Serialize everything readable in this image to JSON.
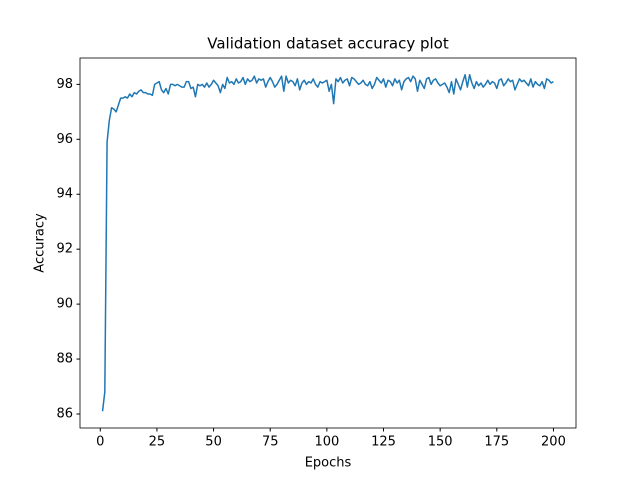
{
  "chart_data": {
    "type": "line",
    "title": "Validation dataset accuracy plot",
    "x_label": "Epochs",
    "y_label": "Accuracy",
    "x": [
      1,
      2,
      3,
      4,
      5,
      6,
      7,
      8,
      9,
      10,
      11,
      12,
      13,
      14,
      15,
      16,
      17,
      18,
      19,
      20,
      21,
      22,
      23,
      24,
      25,
      26,
      27,
      28,
      29,
      30,
      31,
      32,
      33,
      34,
      35,
      36,
      37,
      38,
      39,
      40,
      41,
      42,
      43,
      44,
      45,
      46,
      47,
      48,
      49,
      50,
      51,
      52,
      53,
      54,
      55,
      56,
      57,
      58,
      59,
      60,
      61,
      62,
      63,
      64,
      65,
      66,
      67,
      68,
      69,
      70,
      71,
      72,
      73,
      74,
      75,
      76,
      77,
      78,
      79,
      80,
      81,
      82,
      83,
      84,
      85,
      86,
      87,
      88,
      89,
      90,
      91,
      92,
      93,
      94,
      95,
      96,
      97,
      98,
      99,
      100,
      101,
      102,
      103,
      104,
      105,
      106,
      107,
      108,
      109,
      110,
      111,
      112,
      113,
      114,
      115,
      116,
      117,
      118,
      119,
      120,
      121,
      122,
      123,
      124,
      125,
      126,
      127,
      128,
      129,
      130,
      131,
      132,
      133,
      134,
      135,
      136,
      137,
      138,
      139,
      140,
      141,
      142,
      143,
      144,
      145,
      146,
      147,
      148,
      149,
      150,
      151,
      152,
      153,
      154,
      155,
      156,
      157,
      158,
      159,
      160,
      161,
      162,
      163,
      164,
      165,
      166,
      167,
      168,
      169,
      170,
      171,
      172,
      173,
      174,
      175,
      176,
      177,
      178,
      179,
      180,
      181,
      182,
      183,
      184,
      185,
      186,
      187,
      188,
      189,
      190,
      191,
      192,
      193,
      194,
      195,
      196,
      197,
      198,
      199,
      200
    ],
    "series": [
      {
        "name": "accuracy",
        "color": "#1f77b4",
        "values": [
          86.1,
          86.8,
          95.9,
          96.7,
          97.15,
          97.1,
          97.0,
          97.25,
          97.5,
          97.5,
          97.55,
          97.5,
          97.65,
          97.55,
          97.7,
          97.65,
          97.75,
          97.8,
          97.7,
          97.7,
          97.65,
          97.65,
          97.6,
          98.0,
          98.05,
          98.1,
          97.8,
          97.7,
          97.85,
          97.65,
          98.0,
          98.0,
          97.95,
          98.0,
          97.95,
          97.9,
          97.9,
          98.1,
          98.1,
          97.85,
          97.9,
          97.55,
          98.0,
          97.95,
          98.0,
          97.9,
          98.05,
          97.9,
          98.0,
          98.15,
          98.05,
          97.95,
          97.7,
          98.0,
          97.85,
          98.25,
          98.05,
          98.1,
          98.0,
          98.2,
          98.05,
          98.1,
          98.25,
          98.0,
          98.2,
          98.1,
          98.15,
          98.3,
          98.05,
          98.2,
          98.15,
          98.2,
          97.9,
          98.1,
          98.25,
          98.1,
          97.9,
          98.0,
          98.15,
          98.3,
          97.75,
          98.3,
          98.05,
          98.15,
          98.1,
          97.95,
          98.2,
          97.8,
          98.05,
          98.15,
          98.0,
          98.1,
          98.05,
          98.2,
          98.0,
          97.9,
          98.1,
          98.05,
          98.1,
          98.15,
          97.75,
          98.0,
          97.3,
          98.2,
          98.1,
          98.25,
          98.05,
          98.15,
          98.2,
          97.95,
          98.25,
          98.2,
          98.1,
          98.0,
          98.05,
          98.15,
          98.0,
          97.95,
          98.1,
          97.85,
          98.0,
          98.25,
          98.15,
          98.05,
          98.2,
          97.9,
          98.15,
          98.1,
          97.95,
          98.2,
          98.05,
          98.15,
          97.8,
          98.1,
          98.2,
          98.25,
          98.1,
          98.3,
          98.2,
          97.75,
          98.15,
          98.0,
          97.85,
          98.2,
          98.25,
          98.0,
          98.15,
          98.2,
          98.05,
          97.95,
          98.0,
          98.05,
          97.9,
          97.7,
          98.1,
          97.65,
          98.2,
          98.0,
          97.8,
          98.1,
          98.35,
          97.9,
          98.35,
          98.05,
          97.85,
          98.1,
          97.95,
          98.05,
          97.9,
          98.0,
          98.15,
          98.0,
          98.1,
          98.05,
          97.85,
          98.15,
          98.2,
          97.95,
          98.05,
          98.2,
          98.1,
          98.15,
          97.8,
          98.0,
          98.2,
          98.1,
          98.15,
          98.05,
          97.95,
          98.2,
          97.9,
          98.1,
          98.0,
          97.95,
          98.1,
          97.85,
          98.2,
          98.15,
          98.05,
          98.1
        ]
      }
    ],
    "xlim": [
      -8.95,
      209.95
    ],
    "xticks": [
      0,
      25,
      50,
      75,
      100,
      125,
      150,
      175,
      200
    ],
    "ylim": [
      85.49,
      98.96
    ],
    "yticks": [
      86,
      88,
      90,
      92,
      94,
      96,
      98
    ],
    "grid": false
  }
}
